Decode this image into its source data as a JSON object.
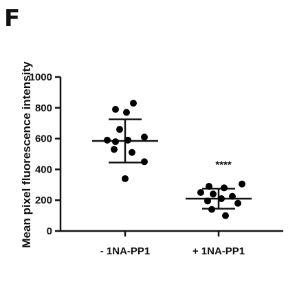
{
  "panel_label": "F",
  "chart_data": {
    "type": "scatter",
    "title": "",
    "xlabel": "",
    "ylabel": "Mean pixel fluorescence intensity",
    "ylim": [
      0,
      1000
    ],
    "yticks": [
      0,
      200,
      400,
      600,
      800,
      1000
    ],
    "grid": false,
    "categories": [
      "- 1NA-PP1",
      "+ 1NA-PP1"
    ],
    "groups": [
      {
        "category": "- 1NA-PP1",
        "points": [
          830,
          790,
          770,
          660,
          610,
          590,
          590,
          580,
          530,
          510,
          450,
          340
        ],
        "mean": 585,
        "sd_upper": 725,
        "sd_lower": 445,
        "annotation": ""
      },
      {
        "category": "+ 1NA-PP1",
        "points": [
          305,
          290,
          280,
          250,
          240,
          225,
          210,
          195,
          180,
          140,
          100
        ],
        "mean": 210,
        "sd_upper": 275,
        "sd_lower": 145,
        "annotation": "****"
      }
    ],
    "colors": {
      "points": "#000000",
      "axis": "#111111"
    }
  }
}
